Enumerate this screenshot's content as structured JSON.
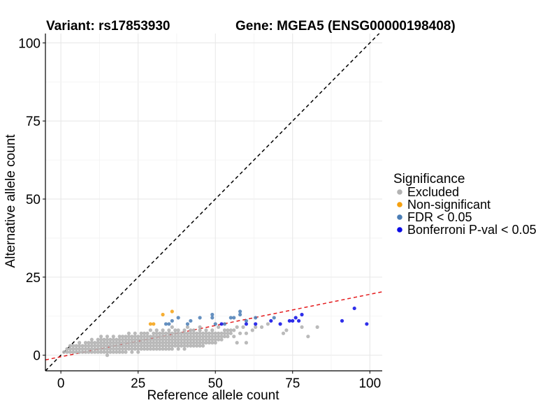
{
  "chart_data": {
    "type": "scatter",
    "title_left": "Variant: rs17853930",
    "title_right": "Gene: MGEA5 (ENSG00000198408)",
    "xlabel": "Reference allele count",
    "ylabel": "Alternative allele count",
    "xlim": [
      -5,
      104
    ],
    "ylim": [
      -5,
      103
    ],
    "xticks": [
      0,
      25,
      50,
      75,
      100
    ],
    "yticks": [
      0,
      25,
      50,
      75,
      100
    ],
    "grid": true,
    "reference_lines": [
      {
        "name": "identity",
        "slope": 1.0,
        "intercept": 0,
        "color": "#000000",
        "dash": "dashed"
      },
      {
        "name": "fit",
        "slope": 0.2,
        "intercept": -0.5,
        "color": "#e41a1c",
        "dash": "dashed"
      }
    ],
    "legend": {
      "title": "Significance",
      "position": "right",
      "items": [
        {
          "label": "Excluded",
          "color": "#b3b3b3"
        },
        {
          "label": "Non-significant",
          "color": "#f5a00f"
        },
        {
          "label": "FDR < 0.05",
          "color": "#4a7db5"
        },
        {
          "label": "Bonferroni P-val < 0.05",
          "color": "#0a0ae6"
        }
      ]
    },
    "series": [
      {
        "name": "Excluded",
        "points": [
          [
            1,
            1
          ],
          [
            2,
            1
          ],
          [
            2,
            2
          ],
          [
            3,
            1
          ],
          [
            3,
            2
          ],
          [
            3,
            3
          ],
          [
            4,
            1
          ],
          [
            4,
            2
          ],
          [
            4,
            3
          ],
          [
            5,
            1
          ],
          [
            5,
            2
          ],
          [
            5,
            3
          ],
          [
            6,
            1
          ],
          [
            6,
            2
          ],
          [
            6,
            3
          ],
          [
            6,
            4
          ],
          [
            7,
            1
          ],
          [
            7,
            2
          ],
          [
            7,
            3
          ],
          [
            8,
            1
          ],
          [
            8,
            2
          ],
          [
            8,
            3
          ],
          [
            8,
            4
          ],
          [
            9,
            1
          ],
          [
            9,
            2
          ],
          [
            9,
            3
          ],
          [
            9,
            4
          ],
          [
            10,
            1
          ],
          [
            10,
            2
          ],
          [
            10,
            3
          ],
          [
            10,
            4
          ],
          [
            10,
            5
          ],
          [
            11,
            1
          ],
          [
            11,
            2
          ],
          [
            11,
            3
          ],
          [
            11,
            4
          ],
          [
            12,
            1
          ],
          [
            12,
            2
          ],
          [
            12,
            3
          ],
          [
            12,
            4
          ],
          [
            12,
            5
          ],
          [
            13,
            1
          ],
          [
            13,
            2
          ],
          [
            13,
            3
          ],
          [
            13,
            4
          ],
          [
            13,
            5
          ],
          [
            13,
            6
          ],
          [
            14,
            1
          ],
          [
            14,
            2
          ],
          [
            14,
            3
          ],
          [
            14,
            4
          ],
          [
            14,
            5
          ],
          [
            15,
            0
          ],
          [
            15,
            1
          ],
          [
            15,
            2
          ],
          [
            15,
            3
          ],
          [
            15,
            4
          ],
          [
            15,
            5
          ],
          [
            15,
            6
          ],
          [
            16,
            1
          ],
          [
            16,
            2
          ],
          [
            16,
            3
          ],
          [
            16,
            4
          ],
          [
            16,
            5
          ],
          [
            17,
            1
          ],
          [
            17,
            2
          ],
          [
            17,
            3
          ],
          [
            17,
            4
          ],
          [
            17,
            5
          ],
          [
            17,
            6
          ],
          [
            18,
            1
          ],
          [
            18,
            2
          ],
          [
            18,
            3
          ],
          [
            18,
            4
          ],
          [
            18,
            5
          ],
          [
            19,
            1
          ],
          [
            19,
            2
          ],
          [
            19,
            3
          ],
          [
            19,
            4
          ],
          [
            19,
            5
          ],
          [
            19,
            6
          ],
          [
            20,
            1
          ],
          [
            20,
            2
          ],
          [
            20,
            3
          ],
          [
            20,
            4
          ],
          [
            20,
            5
          ],
          [
            20,
            6
          ],
          [
            21,
            1
          ],
          [
            21,
            2
          ],
          [
            21,
            3
          ],
          [
            21,
            4
          ],
          [
            21,
            5
          ],
          [
            21,
            6
          ],
          [
            22,
            2
          ],
          [
            22,
            3
          ],
          [
            22,
            4
          ],
          [
            22,
            5
          ],
          [
            22,
            6
          ],
          [
            22,
            7
          ],
          [
            23,
            1
          ],
          [
            23,
            2
          ],
          [
            23,
            3
          ],
          [
            23,
            4
          ],
          [
            23,
            5
          ],
          [
            23,
            6
          ],
          [
            24,
            2
          ],
          [
            24,
            3
          ],
          [
            24,
            4
          ],
          [
            24,
            5
          ],
          [
            24,
            6
          ],
          [
            24,
            7
          ],
          [
            25,
            1
          ],
          [
            25,
            2
          ],
          [
            25,
            3
          ],
          [
            25,
            4
          ],
          [
            25,
            5
          ],
          [
            25,
            6
          ],
          [
            26,
            2
          ],
          [
            26,
            3
          ],
          [
            26,
            4
          ],
          [
            26,
            5
          ],
          [
            26,
            6
          ],
          [
            26,
            7
          ],
          [
            27,
            2
          ],
          [
            27,
            3
          ],
          [
            27,
            4
          ],
          [
            27,
            5
          ],
          [
            27,
            6
          ],
          [
            27,
            7
          ],
          [
            28,
            2
          ],
          [
            28,
            3
          ],
          [
            28,
            4
          ],
          [
            28,
            5
          ],
          [
            28,
            6
          ],
          [
            28,
            7
          ],
          [
            29,
            2
          ],
          [
            29,
            3
          ],
          [
            29,
            4
          ],
          [
            29,
            5
          ],
          [
            29,
            6
          ],
          [
            29,
            8
          ],
          [
            30,
            2
          ],
          [
            30,
            3
          ],
          [
            30,
            4
          ],
          [
            30,
            5
          ],
          [
            30,
            6
          ],
          [
            30,
            7
          ],
          [
            31,
            2
          ],
          [
            31,
            3
          ],
          [
            31,
            4
          ],
          [
            31,
            5
          ],
          [
            31,
            6
          ],
          [
            31,
            7
          ],
          [
            31,
            8
          ],
          [
            32,
            2
          ],
          [
            32,
            3
          ],
          [
            32,
            4
          ],
          [
            32,
            5
          ],
          [
            32,
            6
          ],
          [
            32,
            7
          ],
          [
            33,
            2
          ],
          [
            33,
            3
          ],
          [
            33,
            4
          ],
          [
            33,
            5
          ],
          [
            33,
            6
          ],
          [
            33,
            7
          ],
          [
            33,
            8
          ],
          [
            34,
            2
          ],
          [
            34,
            3
          ],
          [
            34,
            4
          ],
          [
            34,
            5
          ],
          [
            34,
            6
          ],
          [
            34,
            7
          ],
          [
            35,
            2
          ],
          [
            35,
            3
          ],
          [
            35,
            4
          ],
          [
            35,
            5
          ],
          [
            35,
            6
          ],
          [
            35,
            7
          ],
          [
            35,
            8
          ],
          [
            36,
            2
          ],
          [
            36,
            3
          ],
          [
            36,
            4
          ],
          [
            36,
            5
          ],
          [
            36,
            6
          ],
          [
            36,
            7
          ],
          [
            36,
            9
          ],
          [
            37,
            3
          ],
          [
            37,
            4
          ],
          [
            37,
            5
          ],
          [
            37,
            6
          ],
          [
            37,
            7
          ],
          [
            37,
            8
          ],
          [
            38,
            2
          ],
          [
            38,
            3
          ],
          [
            38,
            4
          ],
          [
            38,
            5
          ],
          [
            38,
            6
          ],
          [
            38,
            7
          ],
          [
            38,
            8
          ],
          [
            39,
            3
          ],
          [
            39,
            4
          ],
          [
            39,
            5
          ],
          [
            39,
            6
          ],
          [
            39,
            7
          ],
          [
            40,
            2
          ],
          [
            40,
            3
          ],
          [
            40,
            4
          ],
          [
            40,
            5
          ],
          [
            40,
            6
          ],
          [
            40,
            7
          ],
          [
            40,
            8
          ],
          [
            41,
            3
          ],
          [
            41,
            4
          ],
          [
            41,
            5
          ],
          [
            41,
            6
          ],
          [
            41,
            7
          ],
          [
            41,
            9
          ],
          [
            42,
            3
          ],
          [
            42,
            4
          ],
          [
            42,
            5
          ],
          [
            42,
            6
          ],
          [
            42,
            7
          ],
          [
            42,
            8
          ],
          [
            43,
            3
          ],
          [
            43,
            4
          ],
          [
            43,
            5
          ],
          [
            43,
            6
          ],
          [
            43,
            7
          ],
          [
            43,
            8
          ],
          [
            44,
            3
          ],
          [
            44,
            4
          ],
          [
            44,
            5
          ],
          [
            44,
            6
          ],
          [
            44,
            7
          ],
          [
            45,
            3
          ],
          [
            45,
            4
          ],
          [
            45,
            5
          ],
          [
            45,
            6
          ],
          [
            45,
            7
          ],
          [
            45,
            8
          ],
          [
            45,
            9
          ],
          [
            46,
            3
          ],
          [
            46,
            4
          ],
          [
            46,
            5
          ],
          [
            46,
            6
          ],
          [
            46,
            7
          ],
          [
            47,
            4
          ],
          [
            47,
            5
          ],
          [
            47,
            6
          ],
          [
            47,
            7
          ],
          [
            47,
            8
          ],
          [
            48,
            4
          ],
          [
            48,
            5
          ],
          [
            48,
            6
          ],
          [
            48,
            7
          ],
          [
            49,
            4
          ],
          [
            49,
            5
          ],
          [
            49,
            6
          ],
          [
            49,
            7
          ],
          [
            49,
            8
          ],
          [
            50,
            4
          ],
          [
            50,
            5
          ],
          [
            50,
            6
          ],
          [
            50,
            7
          ],
          [
            51,
            5
          ],
          [
            51,
            6
          ],
          [
            51,
            7
          ],
          [
            51,
            9
          ],
          [
            52,
            5
          ],
          [
            52,
            6
          ],
          [
            52,
            7
          ],
          [
            53,
            6
          ],
          [
            53,
            7
          ],
          [
            53,
            8
          ],
          [
            54,
            6
          ],
          [
            54,
            7
          ],
          [
            54,
            8
          ],
          [
            55,
            7
          ],
          [
            55,
            8
          ],
          [
            56,
            6
          ],
          [
            56,
            8
          ],
          [
            57,
            4
          ],
          [
            57,
            9
          ],
          [
            58,
            7
          ],
          [
            59,
            9
          ],
          [
            60,
            4
          ],
          [
            60,
            7
          ],
          [
            62,
            8
          ],
          [
            63,
            9
          ],
          [
            65,
            9
          ],
          [
            67,
            10
          ],
          [
            72,
            7
          ],
          [
            73,
            8
          ],
          [
            78,
            9
          ],
          [
            80,
            6
          ],
          [
            83,
            9
          ]
        ]
      },
      {
        "name": "Non-significant",
        "points": [
          [
            29,
            10
          ],
          [
            30,
            10
          ],
          [
            33,
            13
          ],
          [
            36,
            14
          ]
        ]
      },
      {
        "name": "FDR < 0.05",
        "points": [
          [
            34,
            10
          ],
          [
            35,
            10
          ],
          [
            36,
            11
          ],
          [
            38,
            12
          ],
          [
            41,
            10
          ],
          [
            42,
            11
          ],
          [
            45,
            12
          ],
          [
            49,
            12
          ],
          [
            49,
            13
          ],
          [
            50,
            10
          ],
          [
            53,
            10
          ],
          [
            55,
            12
          ],
          [
            56,
            12
          ],
          [
            58,
            13
          ],
          [
            58,
            14
          ],
          [
            60,
            11
          ],
          [
            63,
            12
          ],
          [
            69,
            12
          ]
        ]
      },
      {
        "name": "Bonferroni P-val < 0.05",
        "points": [
          [
            52,
            10
          ],
          [
            60,
            10
          ],
          [
            63,
            10
          ],
          [
            68,
            11
          ],
          [
            71,
            10
          ],
          [
            74,
            11
          ],
          [
            75,
            11
          ],
          [
            76,
            12
          ],
          [
            77,
            11
          ],
          [
            78,
            13
          ],
          [
            91,
            11
          ],
          [
            95,
            15
          ],
          [
            99,
            10
          ]
        ]
      }
    ]
  }
}
